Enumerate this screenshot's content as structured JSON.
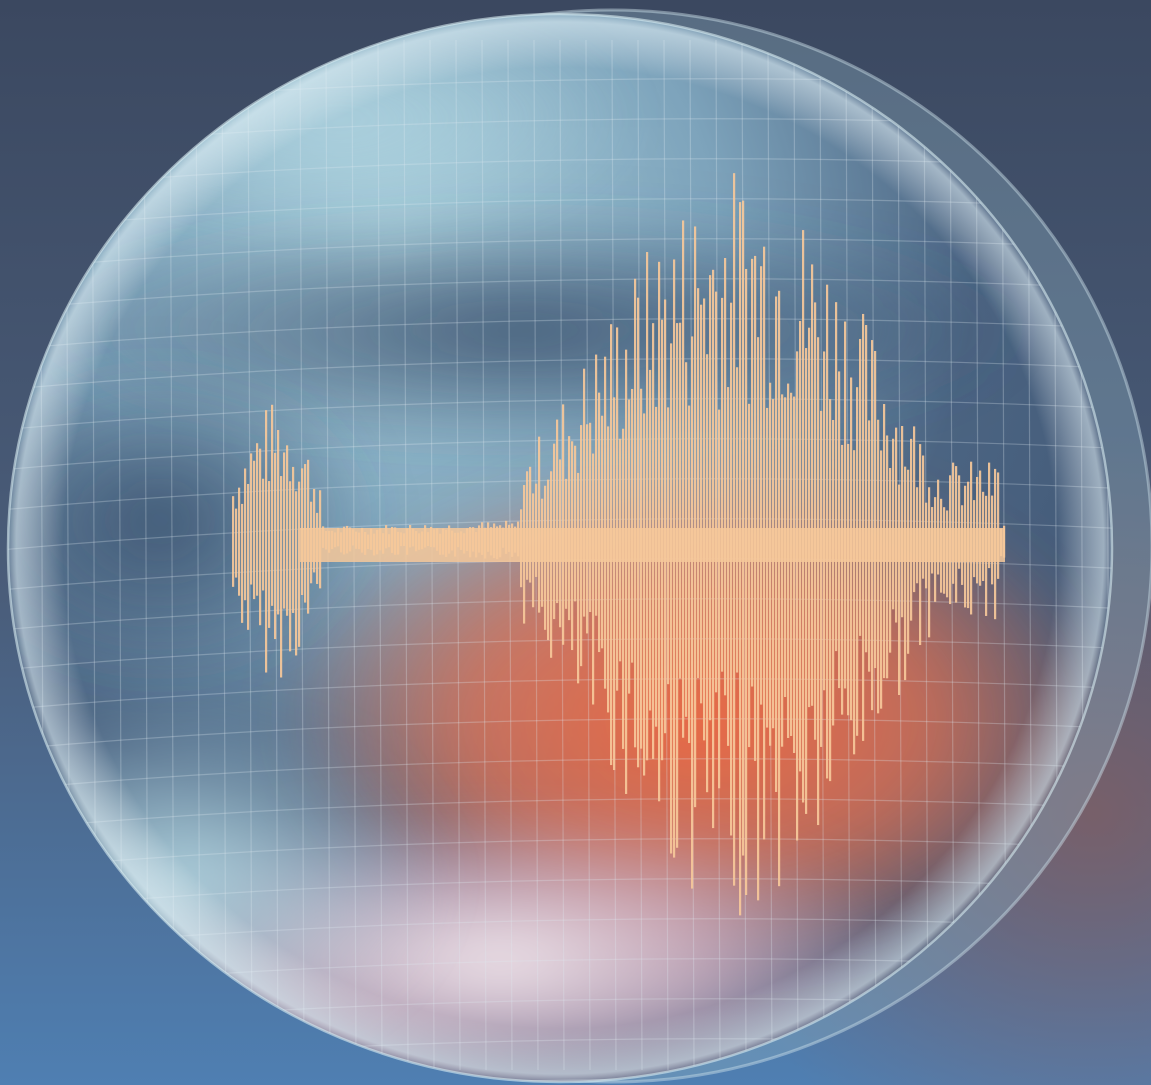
{
  "illustration": {
    "subject": "seismograph-waveform-inside-glass-sphere",
    "colors": {
      "backdrop_top": "#3b4860",
      "backdrop_mid": "#4a5d7a",
      "backdrop_bottom": "#4f7fb2",
      "sphere_light": "#a9cfdc",
      "sphere_mid": "#5f7f9c",
      "sphere_dark": "#3e5472",
      "glow_orange": "#e8704e",
      "glow_pink": "#f0c8d0",
      "glow_white": "#eef2f4",
      "waveform": "#f6c89a",
      "grid_line": "#dfeaf0"
    }
  }
}
